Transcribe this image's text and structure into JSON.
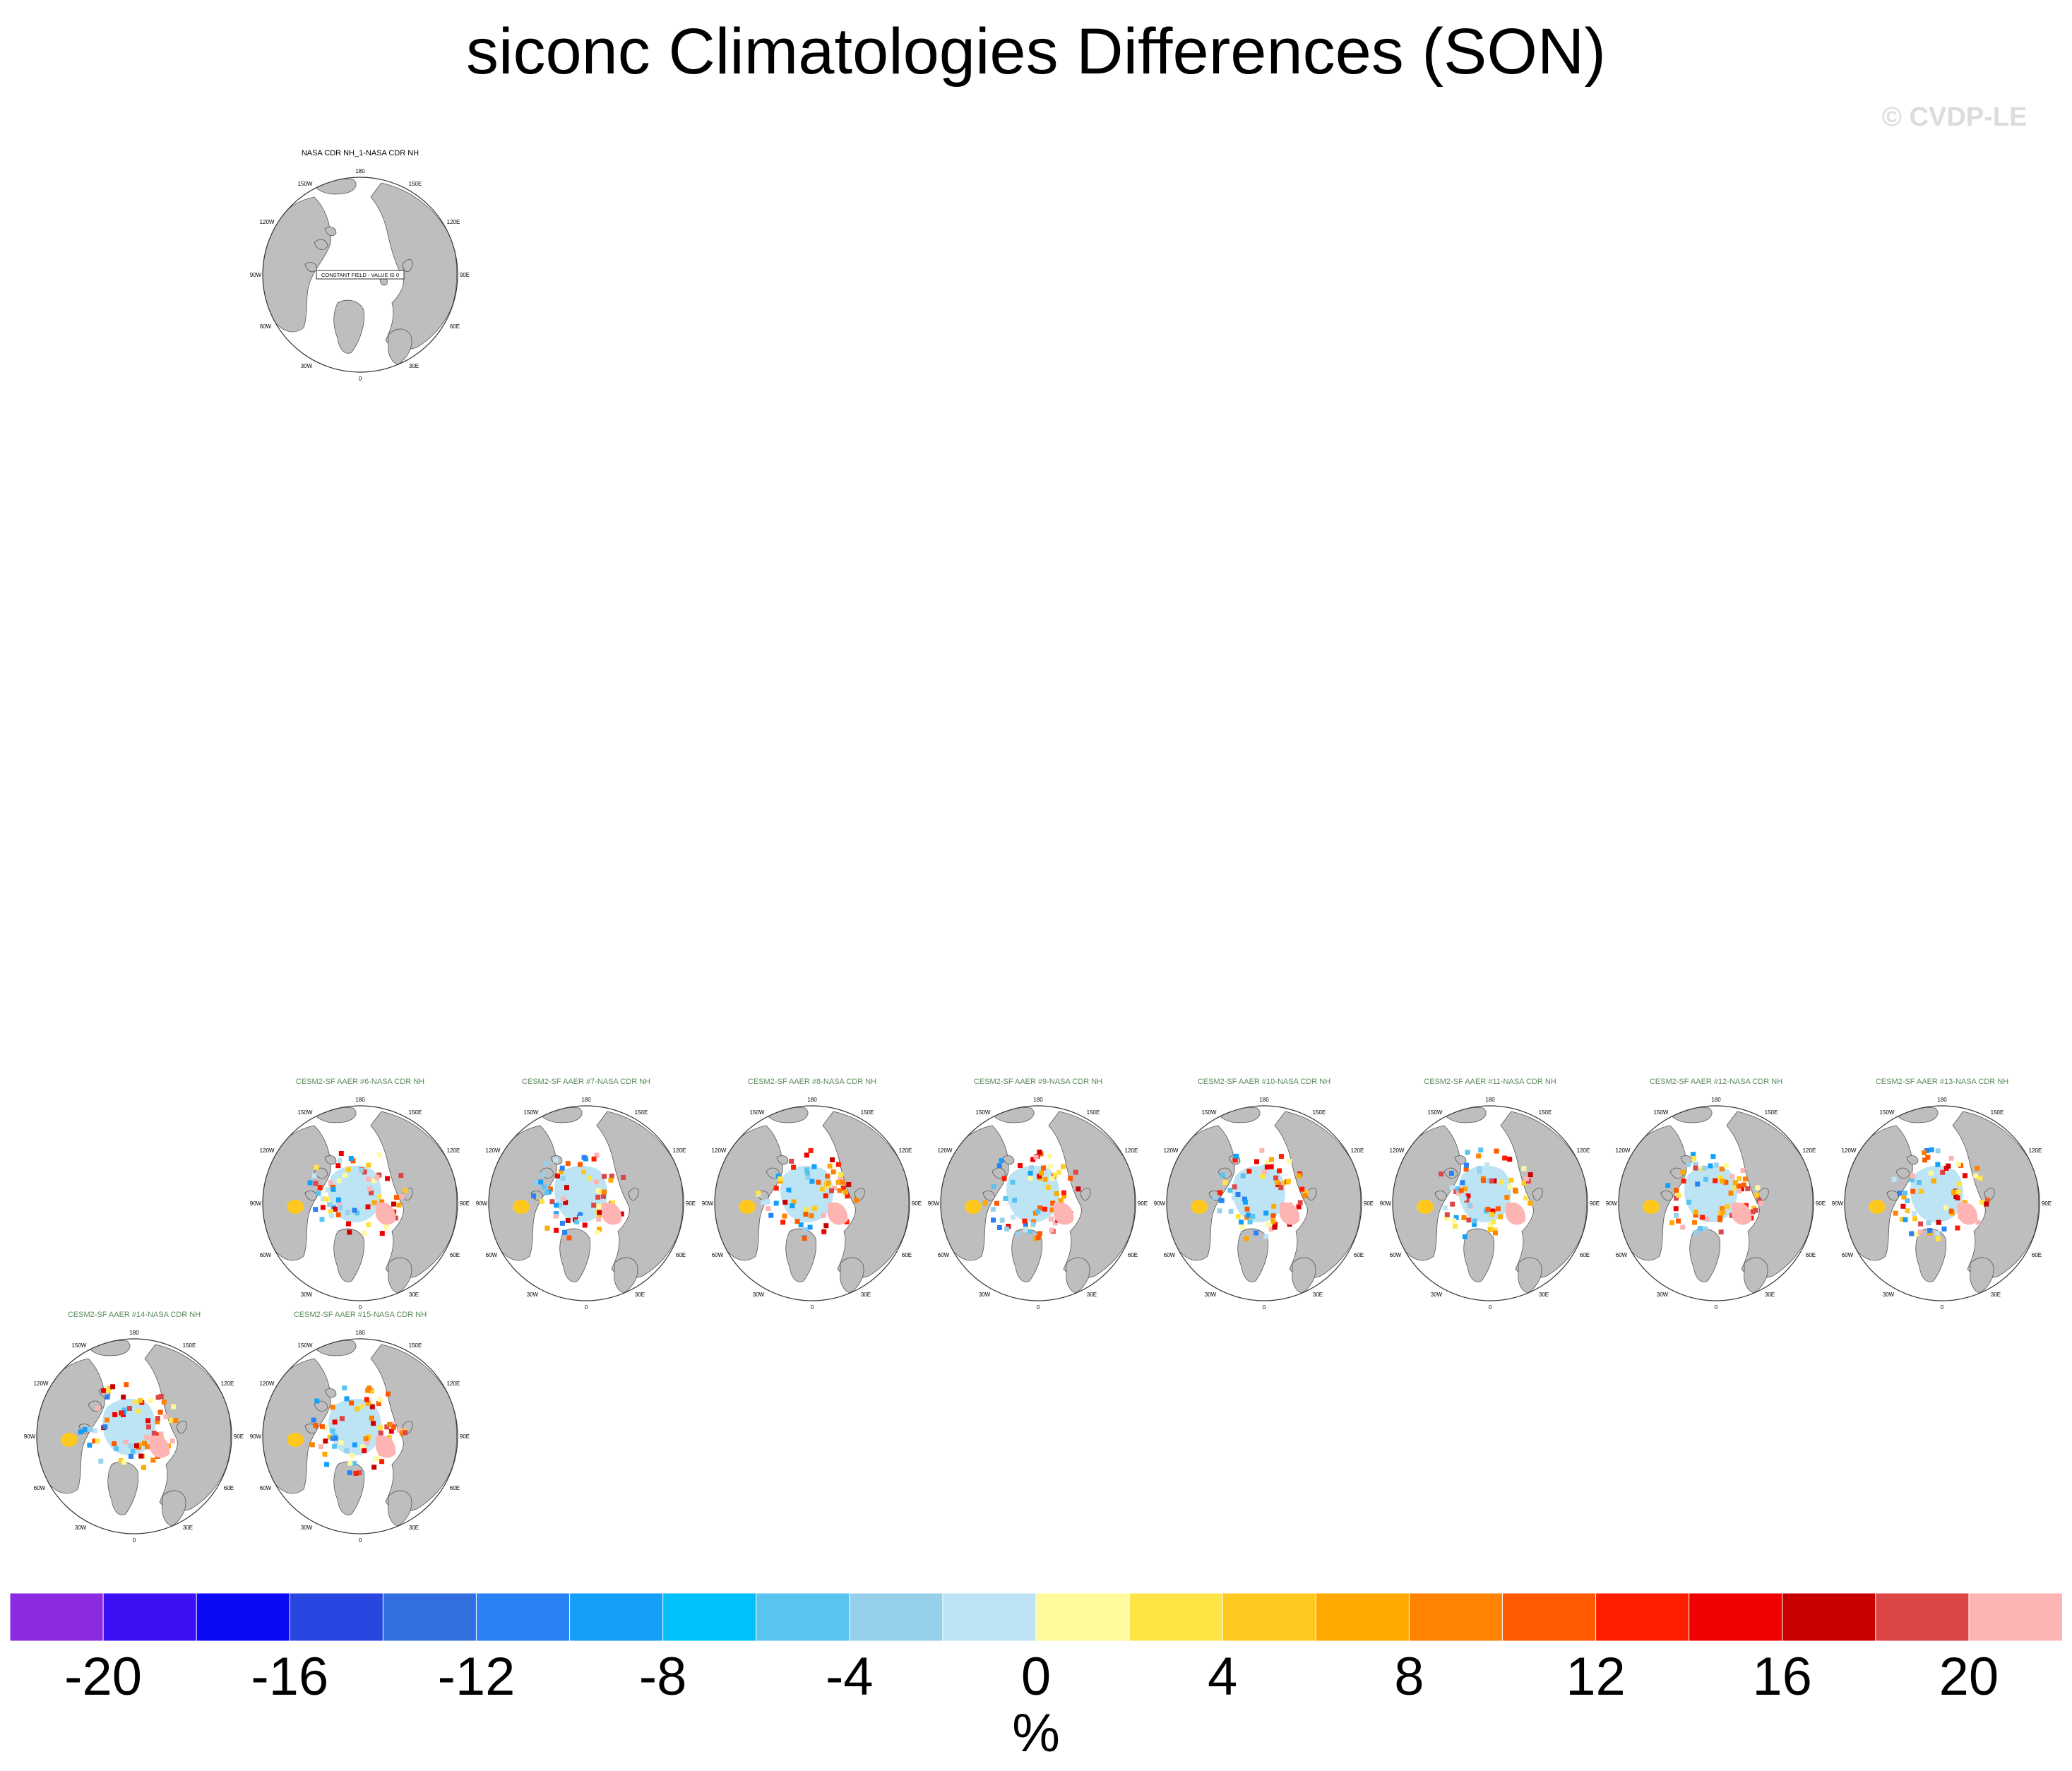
{
  "figure": {
    "title": "siconc Climatologies Differences (SON)",
    "watermark": "© CVDP-LE"
  },
  "panels": [
    {
      "id": "obs",
      "title": "NASA CDR NH_1-NASA CDR NH",
      "constant_field_label": "CONSTANT FIELD - VALUE IS 0",
      "kind": "constant",
      "title_color": "#000000"
    },
    {
      "id": "m6",
      "title": "CESM2-SF AAER #6-NASA CDR NH",
      "kind": "diff",
      "variant": 6,
      "title_color": "#5a8a5a"
    },
    {
      "id": "m7",
      "title": "CESM2-SF AAER #7-NASA CDR NH",
      "kind": "diff",
      "variant": 7,
      "title_color": "#5a8a5a"
    },
    {
      "id": "m8",
      "title": "CESM2-SF AAER #8-NASA CDR NH",
      "kind": "diff",
      "variant": 8,
      "title_color": "#5a8a5a"
    },
    {
      "id": "m9",
      "title": "CESM2-SF AAER #9-NASA CDR NH",
      "kind": "diff",
      "variant": 9,
      "title_color": "#5a8a5a"
    },
    {
      "id": "m10",
      "title": "CESM2-SF AAER #10-NASA CDR NH",
      "kind": "diff",
      "variant": 10,
      "title_color": "#5a8a5a"
    },
    {
      "id": "m11",
      "title": "CESM2-SF AAER #11-NASA CDR NH",
      "kind": "diff",
      "variant": 11,
      "title_color": "#5a8a5a"
    },
    {
      "id": "m12",
      "title": "CESM2-SF AAER #12-NASA CDR NH",
      "kind": "diff",
      "variant": 12,
      "title_color": "#5a8a5a"
    },
    {
      "id": "m13",
      "title": "CESM2-SF AAER #13-NASA CDR NH",
      "kind": "diff",
      "variant": 13,
      "title_color": "#5a8a5a"
    },
    {
      "id": "m14",
      "title": "CESM2-SF AAER #14-NASA CDR NH",
      "kind": "diff",
      "variant": 14,
      "title_color": "#5a8a5a"
    },
    {
      "id": "m15",
      "title": "CESM2-SF AAER #15-NASA CDR NH",
      "kind": "diff",
      "variant": 15,
      "title_color": "#5a8a5a"
    }
  ],
  "map_labels": {
    "lon_180": "180",
    "lon_150w": "150W",
    "lon_150e": "150E",
    "lon_120w": "120W",
    "lon_120e": "120E",
    "lon_90w": "90W",
    "lon_90e": "90E",
    "lon_60w": "60W",
    "lon_60e": "60E",
    "lon_30w": "30W",
    "lon_30e": "30E",
    "lon_0": "0"
  },
  "colorbar": {
    "units": "%",
    "colors": [
      "#8a2be2",
      "#3c0ff5",
      "#0a0af5",
      "#2846e0",
      "#3270e0",
      "#2882f5",
      "#14a0fa",
      "#00c0fa",
      "#5ac4f0",
      "#96d0ea",
      "#bce4f4",
      "#fffa9c",
      "#ffe446",
      "#ffc81e",
      "#ffa800",
      "#ff8200",
      "#ff5a00",
      "#ff1e00",
      "#f00000",
      "#c80000",
      "#dc4646",
      "#ffb4b4"
    ],
    "tick_labels": [
      "-20",
      "-16",
      "-12",
      "-8",
      "-4",
      "0",
      "4",
      "8",
      "12",
      "16",
      "20"
    ],
    "levels": [
      -20,
      -18,
      -16,
      -14,
      -12,
      -10,
      -8,
      -6,
      -4,
      -2,
      0,
      2,
      4,
      6,
      8,
      10,
      12,
      14,
      16,
      18,
      20
    ]
  }
}
